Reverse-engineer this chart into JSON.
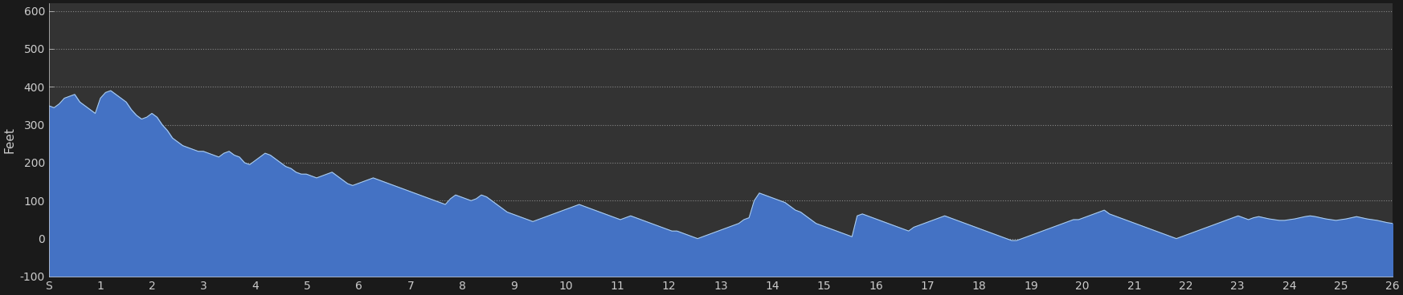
{
  "ylabel": "Feet",
  "xlabel_ticks": [
    "S",
    "1",
    "2",
    "3",
    "4",
    "5",
    "6",
    "7",
    "8",
    "9",
    "10",
    "11",
    "12",
    "13",
    "14",
    "15",
    "16",
    "17",
    "18",
    "19",
    "20",
    "21",
    "22",
    "23",
    "24",
    "25",
    "26"
  ],
  "ylim": [
    -100,
    620
  ],
  "yticks": [
    -100,
    0,
    100,
    200,
    300,
    400,
    500,
    600
  ],
  "bg_color": "#1a1a1a",
  "plot_bg_color": "#333333",
  "fill_color": "#4472C4",
  "line_color": "#aaccee",
  "grid_color": "#888888",
  "text_color": "#cccccc",
  "elevation": [
    350,
    345,
    355,
    370,
    375,
    380,
    360,
    350,
    340,
    330,
    370,
    385,
    390,
    380,
    370,
    360,
    340,
    325,
    315,
    320,
    330,
    320,
    300,
    285,
    265,
    255,
    245,
    240,
    235,
    230,
    230,
    225,
    220,
    215,
    225,
    230,
    220,
    215,
    200,
    195,
    205,
    215,
    225,
    220,
    210,
    200,
    190,
    185,
    175,
    170,
    170,
    165,
    160,
    165,
    170,
    175,
    165,
    155,
    145,
    140,
    145,
    150,
    155,
    160,
    155,
    150,
    145,
    140,
    135,
    130,
    125,
    120,
    115,
    110,
    105,
    100,
    95,
    90,
    105,
    115,
    110,
    105,
    100,
    105,
    115,
    110,
    100,
    90,
    80,
    70,
    65,
    60,
    55,
    50,
    45,
    50,
    55,
    60,
    65,
    70,
    75,
    80,
    85,
    90,
    85,
    80,
    75,
    70,
    65,
    60,
    55,
    50,
    55,
    60,
    55,
    50,
    45,
    40,
    35,
    30,
    25,
    20,
    20,
    15,
    10,
    5,
    0,
    5,
    10,
    15,
    20,
    25,
    30,
    35,
    40,
    50,
    55,
    100,
    120,
    115,
    110,
    105,
    100,
    95,
    85,
    75,
    70,
    60,
    50,
    40,
    35,
    30,
    25,
    20,
    15,
    10,
    5,
    60,
    65,
    60,
    55,
    50,
    45,
    40,
    35,
    30,
    25,
    20,
    30,
    35,
    40,
    45,
    50,
    55,
    60,
    55,
    50,
    45,
    40,
    35,
    30,
    25,
    20,
    15,
    10,
    5,
    0,
    -5,
    -5,
    0,
    5,
    10,
    15,
    20,
    25,
    30,
    35,
    40,
    45,
    50,
    50,
    55,
    60,
    65,
    70,
    75,
    65,
    60,
    55,
    50,
    45,
    40,
    35,
    30,
    25,
    20,
    15,
    10,
    5,
    0,
    5,
    10,
    15,
    20,
    25,
    30,
    35,
    40,
    45,
    50,
    55,
    60,
    55,
    50,
    55,
    58,
    55,
    52,
    50,
    48,
    48,
    50,
    52,
    55,
    58,
    60,
    58,
    55,
    52,
    50,
    48,
    50,
    52,
    55,
    58,
    55,
    52,
    50,
    48,
    45,
    42,
    40
  ],
  "n_points": 262
}
